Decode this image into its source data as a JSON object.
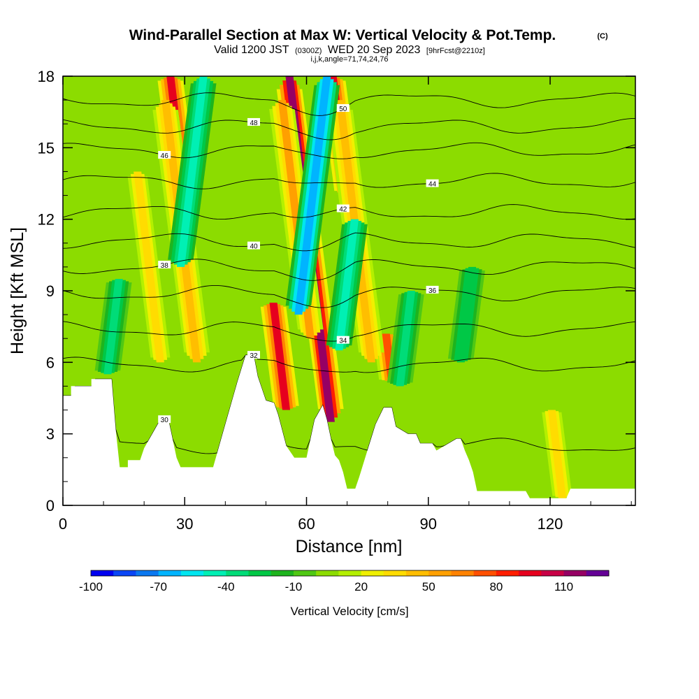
{
  "chart_data": {
    "type": "heatmap",
    "title": "Wind-Parallel Section at Max W: Vertical Velocity & Pot.Temp.",
    "title_mark": "(C)",
    "subtitle": {
      "valid": "Valid 1200 JST",
      "utc": "(0300Z)",
      "date": "WED 20 Sep 2023",
      "fcst": "[9hrFcst@2210z]"
    },
    "indices_line": "i,j,k,angle=71,74,24,76",
    "xlabel": "Distance [nm]",
    "ylabel": "Height [Kft MSL]",
    "xlim": [
      0,
      141
    ],
    "ylim": [
      0,
      18
    ],
    "x_ticks": [
      0,
      30,
      60,
      90,
      120
    ],
    "y_ticks": [
      0,
      3,
      6,
      9,
      12,
      15,
      18
    ],
    "colorbar": {
      "label": "Vertical Velocity [cm/s]",
      "tick_labels": [
        "-100",
        "-70",
        "-40",
        "-10",
        "20",
        "50",
        "80",
        "110"
      ],
      "levels": [
        -100,
        -90,
        -80,
        -70,
        -60,
        -50,
        -40,
        -30,
        -20,
        -10,
        0,
        10,
        20,
        30,
        40,
        50,
        60,
        70,
        80,
        90,
        100,
        110,
        120
      ],
      "colors": [
        "#0000f0",
        "#0a46f5",
        "#0a78f0",
        "#00b4ff",
        "#00e6f0",
        "#00f0b4",
        "#00dc78",
        "#00c846",
        "#1eb41e",
        "#50c814",
        "#8cdc00",
        "#b4f000",
        "#f0f000",
        "#ffdc00",
        "#ffbe00",
        "#ffa000",
        "#ff8200",
        "#ff5000",
        "#ff1e00",
        "#e6001e",
        "#c80046",
        "#960064",
        "#640096"
      ]
    },
    "terrain_kft": [
      [
        0,
        4.6
      ],
      [
        2,
        4.6
      ],
      [
        2,
        5
      ],
      [
        7,
        5
      ],
      [
        7,
        5.3
      ],
      [
        12,
        5.3
      ],
      [
        13,
        3.2
      ],
      [
        14,
        1.6
      ],
      [
        16,
        1.6
      ],
      [
        16,
        1.9
      ],
      [
        19,
        1.9
      ],
      [
        20,
        2.4
      ],
      [
        22,
        3
      ],
      [
        24,
        3.6
      ],
      [
        26,
        3.6
      ],
      [
        27,
        2.8
      ],
      [
        28,
        2
      ],
      [
        29,
        1.6
      ],
      [
        37,
        1.6
      ],
      [
        38,
        2.2
      ],
      [
        40,
        3.4
      ],
      [
        43,
        5.2
      ],
      [
        45,
        6.3
      ],
      [
        47,
        6.3
      ],
      [
        48,
        5.4
      ],
      [
        50,
        4.4
      ],
      [
        52,
        4.3
      ],
      [
        53,
        3.8
      ],
      [
        55,
        2.5
      ],
      [
        57,
        2
      ],
      [
        60,
        2
      ],
      [
        61,
        2.8
      ],
      [
        62,
        3.6
      ],
      [
        64,
        4.2
      ],
      [
        65,
        3.6
      ],
      [
        66,
        2.8
      ],
      [
        67,
        2.1
      ],
      [
        68,
        1.9
      ],
      [
        69,
        1.4
      ],
      [
        70,
        0.7
      ],
      [
        72,
        0.7
      ],
      [
        73,
        1.2
      ],
      [
        75,
        2.3
      ],
      [
        77,
        3.4
      ],
      [
        79,
        4.1
      ],
      [
        81,
        4.1
      ],
      [
        82,
        3.3
      ],
      [
        85,
        3
      ],
      [
        87,
        3
      ],
      [
        88,
        2.6
      ],
      [
        91,
        2.6
      ],
      [
        92,
        2.3
      ],
      [
        94,
        2.5
      ],
      [
        97,
        2.8
      ],
      [
        98,
        2.8
      ],
      [
        99,
        2.3
      ],
      [
        100,
        1.9
      ],
      [
        101,
        1.4
      ],
      [
        102,
        0.6
      ],
      [
        114,
        0.6
      ],
      [
        115,
        0.3
      ],
      [
        124,
        0.3
      ],
      [
        125,
        0.7
      ],
      [
        141,
        0.7
      ]
    ],
    "theta_contours": [
      {
        "label": "30",
        "base_kft": 2.5
      },
      {
        "label": "32",
        "base_kft": 5.9
      },
      {
        "label": "34",
        "base_kft": 7.4
      },
      {
        "label": "36",
        "base_kft": 8.9
      },
      {
        "label": "38",
        "base_kft": 10.0
      },
      {
        "label": "40",
        "base_kft": 11.1
      },
      {
        "label": "42",
        "base_kft": 12.3
      },
      {
        "label": "44",
        "base_kft": 13.6
      },
      {
        "label": "46",
        "base_kft": 14.9
      },
      {
        "label": "48",
        "base_kft": 15.9
      },
      {
        "label": "50",
        "base_kft": 17.0
      }
    ],
    "velocity_features": [
      {
        "kind": "updraft",
        "x_nm": 66,
        "bottom_kft": 3.5,
        "top_kft": 18,
        "peak_cm_s": 110
      },
      {
        "kind": "updraft",
        "x_nm": 55,
        "bottom_kft": 4.0,
        "top_kft": 8.5,
        "peak_cm_s": 90
      },
      {
        "kind": "updraft",
        "x_nm": 30,
        "bottom_kft": 13,
        "top_kft": 18,
        "peak_cm_s": 90
      },
      {
        "kind": "updraft",
        "x_nm": 70,
        "bottom_kft": 13,
        "top_kft": 18,
        "peak_cm_s": 90
      },
      {
        "kind": "updraft",
        "x_nm": 81,
        "bottom_kft": 5.2,
        "top_kft": 7.2,
        "peak_cm_s": 70
      },
      {
        "kind": "updraft",
        "x_nm": 61,
        "bottom_kft": 7,
        "top_kft": 17,
        "peak_cm_s": 50
      },
      {
        "kind": "updraft",
        "x_nm": 33,
        "bottom_kft": 6,
        "top_kft": 17,
        "peak_cm_s": 40
      },
      {
        "kind": "updraft",
        "x_nm": 76,
        "bottom_kft": 6,
        "top_kft": 17,
        "peak_cm_s": 40
      },
      {
        "kind": "updraft",
        "x_nm": 24,
        "bottom_kft": 6,
        "top_kft": 14,
        "peak_cm_s": 30
      },
      {
        "kind": "updraft",
        "x_nm": 123,
        "bottom_kft": 0.3,
        "top_kft": 4,
        "peak_cm_s": 30
      },
      {
        "kind": "downdraft",
        "x_nm": 58,
        "bottom_kft": 8,
        "top_kft": 18,
        "peak_cm_s": -70
      },
      {
        "kind": "downdraft",
        "x_nm": 68,
        "bottom_kft": 6.5,
        "top_kft": 12,
        "peak_cm_s": -50
      },
      {
        "kind": "downdraft",
        "x_nm": 29,
        "bottom_kft": 10,
        "top_kft": 18,
        "peak_cm_s": -50
      },
      {
        "kind": "downdraft",
        "x_nm": 83,
        "bottom_kft": 5,
        "top_kft": 9,
        "peak_cm_s": -40
      },
      {
        "kind": "downdraft",
        "x_nm": 11,
        "bottom_kft": 5.5,
        "top_kft": 9.5,
        "peak_cm_s": -40
      },
      {
        "kind": "downdraft",
        "x_nm": 98,
        "bottom_kft": 6,
        "top_kft": 10,
        "peak_cm_s": -30
      }
    ]
  }
}
